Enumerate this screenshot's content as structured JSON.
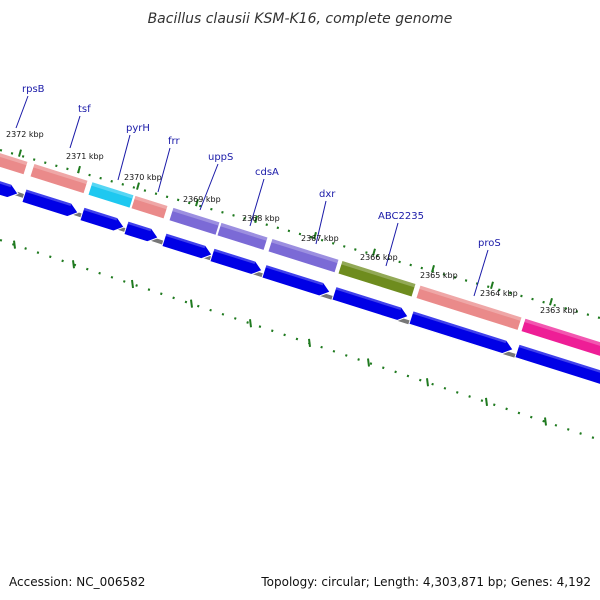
{
  "map": {
    "title": "Bacillus clausii KSM-K16, complete genome",
    "accession": "Accession: NC_006582",
    "summary": "Topology: circular; Length: 4,303,871 bp; Genes: 4,192"
  },
  "colors": {
    "cds_arrow": "#0000e6",
    "backbone": "#777777",
    "ticks": "#1f7a1f",
    "label_text": "#1a1aa8",
    "gene_pink": "#ea8a8a",
    "gene_cyan": "#1ec8f0",
    "gene_purple": "#7b6ad6",
    "gene_olive": "#6e8c1e",
    "gene_magenta": "#ee1e96"
  },
  "scale_labels": [
    "2372 kbp",
    "2371 kbp",
    "2370 kbp",
    "2369 kbp",
    "2368 kbp",
    "2367 kbp",
    "2366 kbp",
    "2365 kbp",
    "2364 kbp",
    "2363 kbp"
  ],
  "gene_labels": [
    "rpsB",
    "tsf",
    "pyrH",
    "frr",
    "uppS",
    "cdsA",
    "dxr",
    "ABC2235",
    "proS"
  ]
}
